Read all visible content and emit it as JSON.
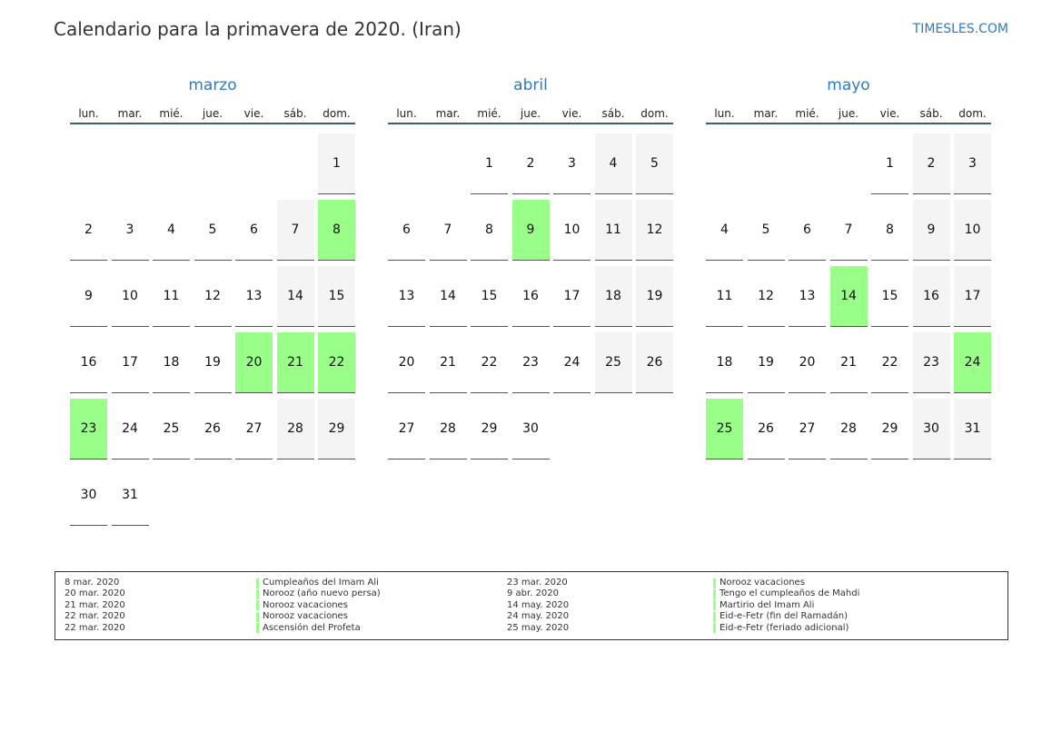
{
  "header": {
    "title": "Calendario para la primavera de 2020. (Iran)",
    "brand": "TIMESLES.COM"
  },
  "weekdays": [
    "lun.",
    "mar.",
    "mié.",
    "jue.",
    "vie.",
    "sáb.",
    "dom."
  ],
  "colors": {
    "accent": "#2f7ac0",
    "holiday": "#99ff88",
    "weekend": "#f4f4f4",
    "header_rule": "#3a5a80"
  },
  "months": [
    {
      "name": "marzo",
      "start_weekday": "dom.",
      "days": 31,
      "holidays": [
        8,
        20,
        21,
        22,
        23
      ]
    },
    {
      "name": "abril",
      "start_weekday": "mié.",
      "days": 30,
      "holidays": [
        9
      ]
    },
    {
      "name": "mayo",
      "start_weekday": "vie.",
      "days": 31,
      "holidays": [
        14,
        24,
        25
      ]
    }
  ],
  "legend": [
    {
      "date": "8 mar. 2020",
      "name": "Cumpleaños del Imam Ali"
    },
    {
      "date": "20 mar. 2020",
      "name": "Norooz (año nuevo persa)"
    },
    {
      "date": "21 mar. 2020",
      "name": "Norooz vacaciones"
    },
    {
      "date": "22 mar. 2020",
      "name": "Norooz vacaciones"
    },
    {
      "date": "22 mar. 2020",
      "name": "Ascensión del Profeta"
    },
    {
      "date": "23 mar. 2020",
      "name": "Norooz vacaciones"
    },
    {
      "date": "9 abr. 2020",
      "name": "Tengo el cumpleaños de Mahdi"
    },
    {
      "date": "14 may. 2020",
      "name": "Martirio del Imam Ali"
    },
    {
      "date": "24 may. 2020",
      "name": "Eid-e-Fetr (fin del Ramadán)"
    },
    {
      "date": "25 may. 2020",
      "name": "Eid-e-Fetr (feriado adicional)"
    }
  ]
}
